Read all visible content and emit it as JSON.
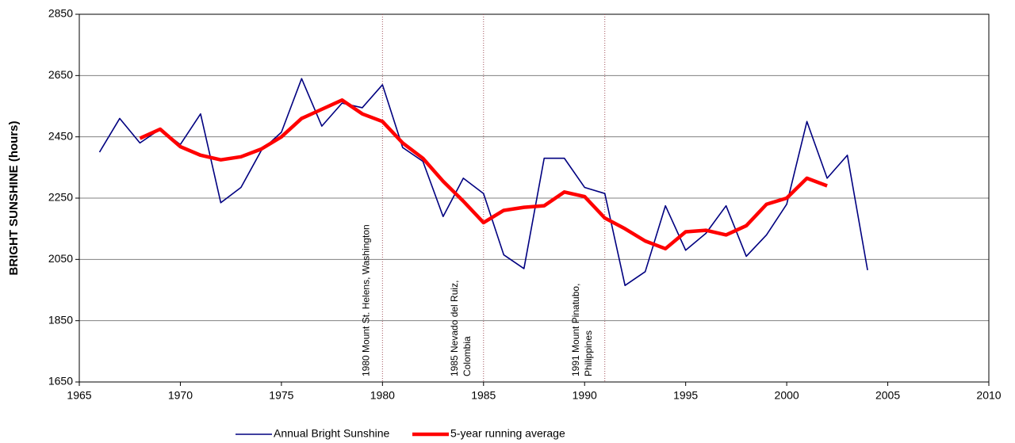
{
  "chart_data": {
    "type": "line",
    "y_label": "BRIGHT SUNSHINE (hours)",
    "x": [
      1966,
      1967,
      1968,
      1969,
      1970,
      1971,
      1972,
      1973,
      1974,
      1975,
      1976,
      1977,
      1978,
      1979,
      1980,
      1981,
      1982,
      1983,
      1984,
      1985,
      1986,
      1987,
      1988,
      1989,
      1990,
      1991,
      1992,
      1993,
      1994,
      1995,
      1996,
      1997,
      1998,
      1999,
      2000,
      2001,
      2002,
      2003,
      2004
    ],
    "series": [
      {
        "name": "Annual Bright Sunshine",
        "color": "#000080",
        "values": [
          2400,
          2510,
          2430,
          2475,
          2425,
          2525,
          2235,
          2285,
          2405,
          2465,
          2640,
          2485,
          2560,
          2545,
          2620,
          2415,
          2370,
          2190,
          2315,
          2265,
          2065,
          2020,
          2380,
          2380,
          2285,
          2265,
          1965,
          2010,
          2225,
          2080,
          2135,
          2225,
          2060,
          2130,
          2230,
          2500,
          2315,
          2390,
          2015
        ]
      },
      {
        "name": "5-year running average",
        "color": "#ff0000",
        "values": [
          null,
          null,
          2445,
          2475,
          2418,
          2390,
          2375,
          2385,
          2410,
          2450,
          2510,
          2540,
          2570,
          2525,
          2500,
          2430,
          2380,
          2305,
          2240,
          2170,
          2210,
          2220,
          2225,
          2270,
          2255,
          2185,
          2150,
          2110,
          2085,
          2140,
          2145,
          2130,
          2160,
          2230,
          2250,
          2315,
          2290,
          null,
          null
        ]
      }
    ],
    "annotations": [
      {
        "x": 1980,
        "lines": [
          "1980 Mount St. Helens, Washington"
        ]
      },
      {
        "x": 1985,
        "lines": [
          "1985 Nevado del Ruiz,",
          "Colombia"
        ]
      },
      {
        "x": 1991,
        "lines": [
          "1991 Mount Pinatubo,",
          "Philippines"
        ]
      }
    ],
    "xlim": [
      1965,
      2010
    ],
    "xticks": [
      1965,
      1970,
      1975,
      1980,
      1985,
      1990,
      1995,
      2000,
      2005,
      2010
    ],
    "ylim": [
      1650,
      2850
    ],
    "yticks": [
      1650,
      1850,
      2050,
      2250,
      2450,
      2650,
      2850
    ],
    "grid": true,
    "legend": "bottom"
  }
}
